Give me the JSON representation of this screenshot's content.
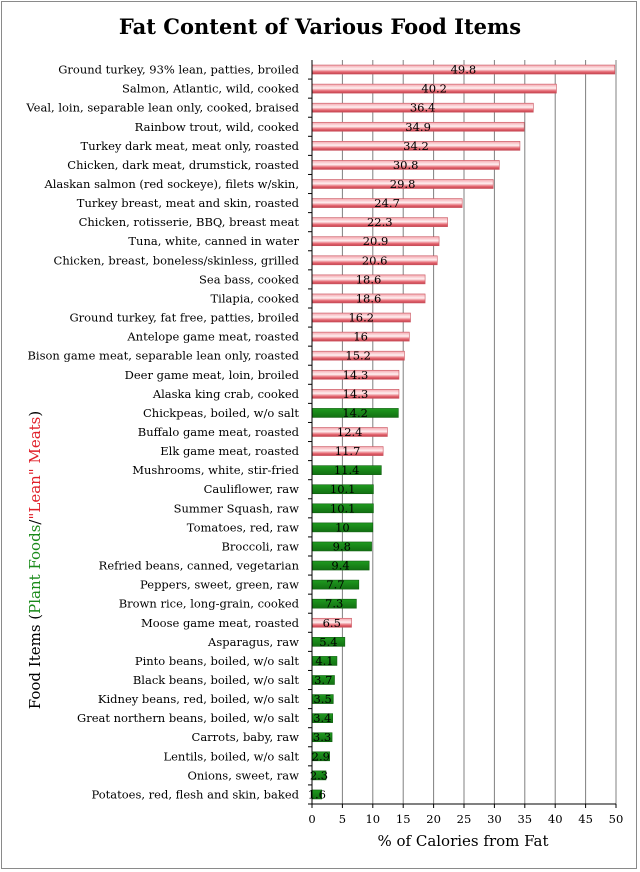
{
  "chart_data": {
    "type": "bar",
    "orientation": "horizontal",
    "title": "Fat Content of Various Food Items",
    "xlabel": "% of Calories from Fat",
    "ylabel_parts": [
      "Food Items (",
      "Plant Foods",
      "/",
      "\"Lean\" Meats",
      ")"
    ],
    "xlim": [
      0,
      50
    ],
    "xticks": [
      0,
      5,
      10,
      15,
      20,
      25,
      30,
      35,
      40,
      45,
      50
    ],
    "grid": true,
    "colors": {
      "lean_meats": "#e8707a",
      "plant_foods": "#1a8a1a",
      "grid": "#808080",
      "plant_text": "#1a8a1a",
      "meat_text": "#e0202a"
    },
    "categories": [
      "Ground turkey, 93% lean, patties, broiled",
      "Salmon, Atlantic, wild, cooked",
      "Veal, loin, separable lean only, cooked, braised",
      "Rainbow trout, wild, cooked",
      "Turkey dark meat, meat only, roasted",
      "Chicken, dark meat, drumstick, roasted",
      "Alaskan salmon (red sockeye), filets w/skin,",
      "Turkey breast, meat and skin, roasted",
      "Chicken, rotisserie, BBQ, breast meat",
      "Tuna, white, canned in water",
      "Chicken, breast, boneless/skinless, grilled",
      "Sea bass, cooked",
      "Tilapia, cooked",
      "Ground turkey, fat free, patties, broiled",
      "Antelope game meat, roasted",
      "Bison game meat, separable lean only, roasted",
      "Deer game meat, loin, broiled",
      "Alaska king crab, cooked",
      "Chickpeas, boiled, w/o salt",
      "Buffalo game meat, roasted",
      "Elk game meat, roasted",
      "Mushrooms, white, stir-fried",
      "Cauliflower, raw",
      "Summer Squash, raw",
      "Tomatoes, red, raw",
      "Broccoli, raw",
      "Refried beans, canned, vegetarian",
      "Peppers, sweet, green, raw",
      "Brown rice, long-grain, cooked",
      "Moose game meat, roasted",
      "Asparagus, raw",
      "Pinto beans, boiled, w/o salt",
      "Black beans, boiled, w/o salt",
      "Kidney beans, red, boiled, w/o salt",
      "Great northern beans, boiled, w/o salt",
      "Carrots, baby, raw",
      "Lentils, boiled, w/o salt",
      "Onions, sweet, raw",
      "Potatoes, red, flesh and skin, baked"
    ],
    "values": [
      49.8,
      40.2,
      36.4,
      34.9,
      34.2,
      30.8,
      29.8,
      24.7,
      22.3,
      20.9,
      20.6,
      18.6,
      18.6,
      16.2,
      16,
      15.2,
      14.3,
      14.3,
      14.2,
      12.4,
      11.7,
      11.4,
      10.1,
      10.1,
      10,
      9.8,
      9.4,
      7.7,
      7.3,
      6.5,
      5.4,
      4.1,
      3.7,
      3.5,
      3.4,
      3.3,
      2.9,
      2.3,
      1.6
    ],
    "groups": [
      "meat",
      "meat",
      "meat",
      "meat",
      "meat",
      "meat",
      "meat",
      "meat",
      "meat",
      "meat",
      "meat",
      "meat",
      "meat",
      "meat",
      "meat",
      "meat",
      "meat",
      "meat",
      "plant",
      "meat",
      "meat",
      "plant",
      "plant",
      "plant",
      "plant",
      "plant",
      "plant",
      "plant",
      "plant",
      "meat",
      "plant",
      "plant",
      "plant",
      "plant",
      "plant",
      "plant",
      "plant",
      "plant",
      "plant"
    ],
    "data_labels": [
      "49.8",
      "40.2",
      "36.4",
      "34.9",
      "34.2",
      "30.8",
      "29.8",
      "24.7",
      "22.3",
      "20.9",
      "20.6",
      "18.6",
      "18.6",
      "16.2",
      "16",
      "15.2",
      "14.3",
      "14.3",
      "14.2",
      "12.4",
      "11.7",
      "11.4",
      "10.1",
      "10.1",
      "10",
      "9.8",
      "9.4",
      "7.7",
      "7.3",
      "6.5",
      "5.4",
      "4.1",
      "3.7",
      "3.5",
      "3.4",
      "3.3",
      "2.9",
      "2.3",
      "1.6"
    ]
  }
}
